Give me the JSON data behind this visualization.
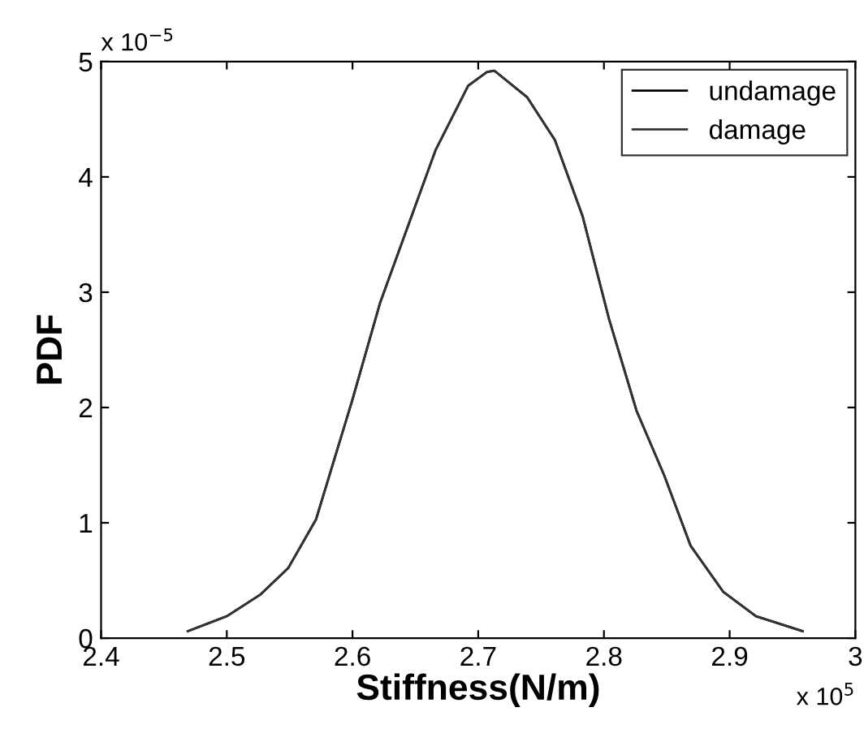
{
  "chart_data": {
    "type": "line",
    "xlabel": "Stiffness(N/m)",
    "ylabel": "PDF",
    "annotations": [
      "x 10$^{−5}$",
      "x 10$^{5}$"
    ],
    "x": [
      2.469,
      2.5,
      2.527,
      2.549,
      2.571,
      2.6,
      2.622,
      2.644,
      2.666,
      2.692,
      2.707,
      2.713,
      2.739,
      2.761,
      2.783,
      2.804,
      2.826,
      2.848,
      2.869,
      2.895,
      2.921,
      2.958
    ],
    "series": [
      {
        "name": "undamage",
        "color": "#000000",
        "values": [
          0.06,
          0.19,
          0.38,
          0.61,
          1.03,
          2.07,
          2.91,
          3.57,
          4.23,
          4.79,
          4.91,
          4.92,
          4.69,
          4.32,
          3.66,
          2.77,
          1.97,
          1.41,
          0.8,
          0.4,
          0.19,
          0.06
        ]
      },
      {
        "name": "damage",
        "color": "#333333",
        "values": [
          0.06,
          0.19,
          0.38,
          0.61,
          1.03,
          2.07,
          2.91,
          3.57,
          4.23,
          4.79,
          4.91,
          4.92,
          4.69,
          4.32,
          3.66,
          2.77,
          1.97,
          1.41,
          0.8,
          0.4,
          0.19,
          0.06
        ]
      }
    ],
    "xlim": [
      2.4,
      3
    ],
    "xticks": [
      2.4,
      2.5,
      2.6,
      2.7,
      2.8,
      2.9,
      {
        "value": 3,
        "label": "3"
      }
    ],
    "ylim": [
      0,
      5
    ],
    "yticks": [
      0,
      1,
      2,
      3,
      4,
      5
    ],
    "grid": false,
    "legend": "top right",
    "marker": "none",
    "line_style": "solid"
  }
}
